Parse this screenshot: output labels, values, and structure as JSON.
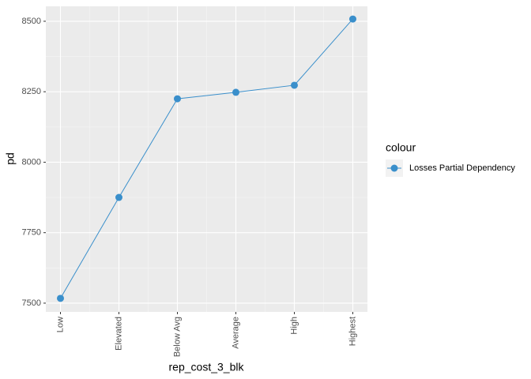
{
  "chart_data": {
    "type": "line",
    "x_label": "rep_cost_3_blk",
    "y_label": "pd",
    "categories": [
      "Low",
      "Elevated",
      "Below Avg",
      "Average",
      "High",
      "Highest"
    ],
    "series": [
      {
        "name": "Losses Partial Dependency",
        "color": "#3a8fcb",
        "values": [
          7517,
          7875,
          8225,
          8248,
          8273,
          8508
        ]
      }
    ],
    "legend_title": "colour",
    "ylim": [
      7469,
      8553
    ],
    "yticks": [
      7500,
      7750,
      8000,
      8250,
      8500
    ],
    "grid": true
  }
}
